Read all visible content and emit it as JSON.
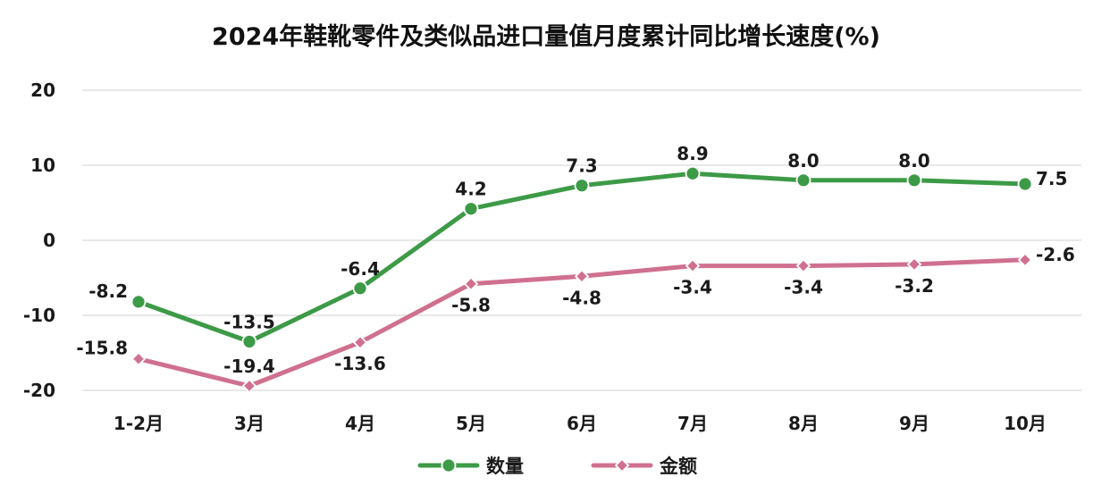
{
  "chart_data": {
    "type": "line",
    "title": "2024年鞋靴零件及类似品进口量值月度累计同比增长速度(%)",
    "xlabel": "",
    "ylabel": "",
    "categories": [
      "1-2月",
      "3月",
      "4月",
      "5月",
      "6月",
      "7月",
      "8月",
      "9月",
      "10月"
    ],
    "ylim": [
      -20,
      20
    ],
    "yticks": [
      20,
      10,
      0,
      -10,
      -20
    ],
    "grid": true,
    "legend_position": "bottom",
    "series": [
      {
        "name": "数量",
        "color": "#3d9a47",
        "marker": "circle",
        "values": [
          -8.2,
          -13.5,
          -6.4,
          4.2,
          7.3,
          8.9,
          8.0,
          8.0,
          7.5
        ],
        "labels": [
          "-8.2",
          "-13.5",
          "-6.4",
          "4.2",
          "7.3",
          "8.9",
          "8.0",
          "8.0",
          "7.5"
        ],
        "label_position": [
          "left",
          "above",
          "above",
          "above",
          "above",
          "above",
          "above",
          "above",
          "right"
        ]
      },
      {
        "name": "金额",
        "color": "#d0708f",
        "marker": "diamond",
        "values": [
          -15.8,
          -19.4,
          -13.6,
          -5.8,
          -4.8,
          -3.4,
          -3.4,
          -3.2,
          -2.6
        ],
        "labels": [
          "-15.8",
          "-19.4",
          "-13.6",
          "-5.8",
          "-4.8",
          "-3.4",
          "-3.4",
          "-3.2",
          "-2.6"
        ],
        "label_position": [
          "left",
          "above",
          "below",
          "below",
          "below",
          "below",
          "below",
          "below",
          "right"
        ]
      }
    ]
  }
}
